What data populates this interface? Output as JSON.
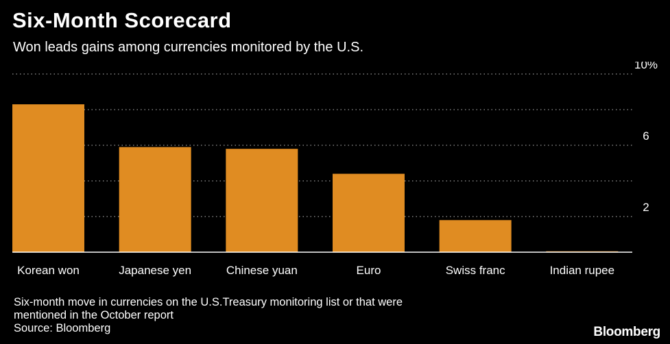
{
  "header": {
    "title": "Six-Month Scorecard",
    "subtitle": "Won leads gains among currencies monitored by the U.S."
  },
  "footer": {
    "note_line1": "Six-month move in currencies on the U.S.Treasury monitoring list or that were",
    "note_line2": "mentioned in the October report",
    "source": "Source: Bloomberg",
    "brand": "Bloomberg"
  },
  "colors": {
    "bar": "#e08c22",
    "background": "#000000",
    "grid": "#9a9a9a",
    "text": "#ffffff"
  },
  "chart_data": {
    "type": "bar",
    "title": "Six-Month Scorecard",
    "subtitle": "Won leads gains among currencies monitored by the U.S.",
    "xlabel": "",
    "ylabel": "",
    "categories": [
      "Korean won",
      "Japanese yen",
      "Chinese yuan",
      "Euro",
      "Swiss franc",
      "Indian rupee"
    ],
    "values": [
      8.3,
      5.9,
      5.8,
      4.4,
      1.8,
      0.05
    ],
    "ylim": [
      0,
      10
    ],
    "yticks": [
      2,
      6,
      10
    ],
    "ytick_labels": [
      "2",
      "6",
      "10%"
    ],
    "grid": true,
    "axis_side": "right"
  }
}
